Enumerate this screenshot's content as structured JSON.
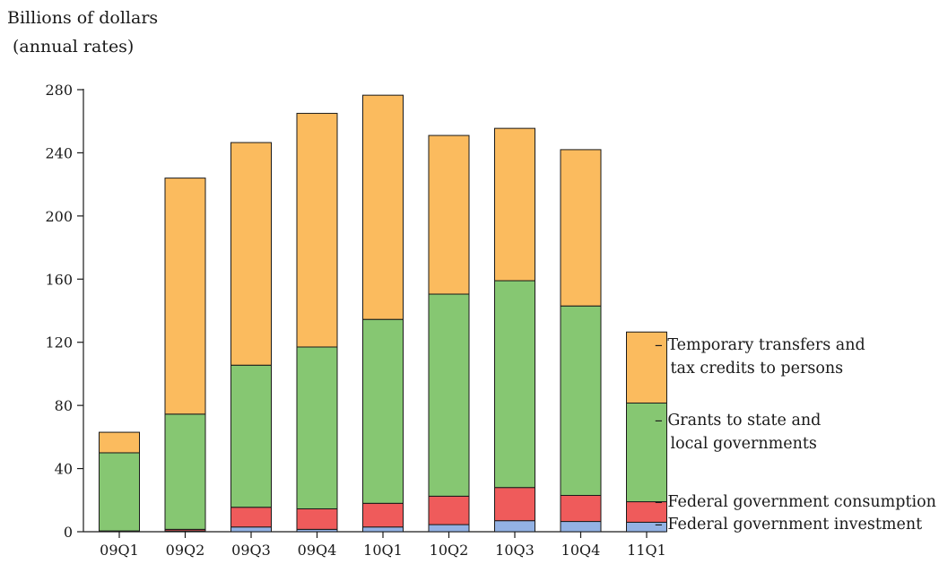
{
  "chart_data": {
    "type": "bar",
    "stacked": true,
    "ylabel_line1": "Billions of dollars",
    "ylabel_line2": "(annual rates)",
    "ylim": [
      0,
      280
    ],
    "yticks": [
      0,
      40,
      80,
      120,
      160,
      200,
      240,
      280
    ],
    "categories": [
      "09Q1",
      "09Q2",
      "09Q3",
      "09Q4",
      "10Q1",
      "10Q2",
      "10Q3",
      "10Q4",
      "11Q1"
    ],
    "series": [
      {
        "name": "Federal government investment",
        "color": "#93b2e4",
        "values": [
          0,
          0.5,
          3,
          1.5,
          3,
          4.5,
          7,
          6.5,
          6
        ]
      },
      {
        "name": "Federal government consumption",
        "color": "#ef5b5b",
        "values": [
          0.5,
          1,
          12.5,
          13,
          15,
          18,
          21,
          16.5,
          13
        ]
      },
      {
        "name": "Grants to state and local governments",
        "color": "#86c772",
        "values": [
          49.5,
          73,
          90,
          102.5,
          116.5,
          128,
          131,
          120,
          62.5
        ]
      },
      {
        "name": "Temporary transfers and tax credits to persons",
        "color": "#fbbb5e",
        "values": [
          13,
          149.5,
          141,
          148,
          142,
          100.5,
          96.5,
          99,
          45
        ]
      }
    ],
    "legend": [
      {
        "lines": [
          "Temporary transfers and",
          "tax credits to persons"
        ]
      },
      {
        "lines": [
          "Grants to state and",
          "local governments"
        ]
      },
      {
        "lines": [
          "Federal government consumption"
        ]
      },
      {
        "lines": [
          "Federal government investment"
        ]
      }
    ],
    "grid": false,
    "legend_placement": "right"
  }
}
